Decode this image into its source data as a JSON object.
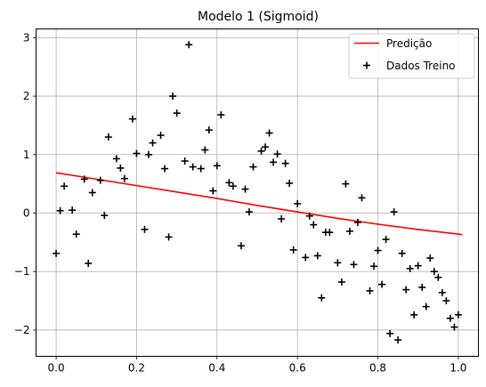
{
  "chart_data": {
    "type": "scatter",
    "title": "Modelo 1 (Sigmoid)",
    "xlabel": "",
    "ylabel": "",
    "xlim": [
      -0.05,
      1.05
    ],
    "ylim": [
      -2.45,
      3.15
    ],
    "xticks": [
      0.0,
      0.2,
      0.4,
      0.6,
      0.8,
      1.0
    ],
    "xtick_labels": [
      "0.0",
      "0.2",
      "0.4",
      "0.6",
      "0.8",
      "1.0"
    ],
    "yticks": [
      -2,
      -1,
      0,
      1,
      2,
      3
    ],
    "ytick_labels": [
      "−2",
      "−1",
      "0",
      "1",
      "2",
      "3"
    ],
    "grid": true,
    "legend_position": "top-right",
    "series": [
      {
        "name": "Predição",
        "kind": "line",
        "color": "#ff0000",
        "x": [
          0.0,
          0.1,
          0.2,
          0.3,
          0.4,
          0.5,
          0.6,
          0.7,
          0.8,
          0.9,
          1.0,
          1.01
        ],
        "y": [
          0.69,
          0.58,
          0.47,
          0.36,
          0.25,
          0.13,
          0.02,
          -0.09,
          -0.19,
          -0.28,
          -0.36,
          -0.37
        ]
      },
      {
        "name": "Dados Treino",
        "kind": "scatter",
        "color": "#000000",
        "marker": "plus",
        "x": [
          0.0,
          0.01,
          0.02,
          0.04,
          0.05,
          0.07,
          0.08,
          0.09,
          0.11,
          0.12,
          0.13,
          0.15,
          0.16,
          0.17,
          0.19,
          0.2,
          0.22,
          0.23,
          0.24,
          0.26,
          0.27,
          0.28,
          0.29,
          0.3,
          0.32,
          0.33,
          0.34,
          0.36,
          0.37,
          0.38,
          0.39,
          0.4,
          0.41,
          0.43,
          0.44,
          0.46,
          0.47,
          0.48,
          0.49,
          0.51,
          0.52,
          0.53,
          0.54,
          0.55,
          0.56,
          0.57,
          0.58,
          0.59,
          0.6,
          0.62,
          0.63,
          0.64,
          0.65,
          0.66,
          0.67,
          0.68,
          0.7,
          0.71,
          0.72,
          0.73,
          0.74,
          0.75,
          0.76,
          0.78,
          0.79,
          0.8,
          0.81,
          0.82,
          0.83,
          0.84,
          0.85,
          0.86,
          0.87,
          0.88,
          0.89,
          0.9,
          0.91,
          0.92,
          0.93,
          0.94,
          0.95,
          0.96,
          0.97,
          0.98,
          0.99,
          1.0
        ],
        "y": [
          -0.69,
          0.04,
          0.46,
          0.05,
          -0.36,
          0.58,
          -0.86,
          0.35,
          0.56,
          -0.04,
          1.3,
          0.93,
          0.77,
          0.59,
          1.61,
          1.02,
          -0.28,
          1.0,
          1.2,
          1.33,
          0.76,
          -0.41,
          2.0,
          1.71,
          0.89,
          2.88,
          0.79,
          0.76,
          1.08,
          1.42,
          0.38,
          0.81,
          1.68,
          0.52,
          0.46,
          -0.56,
          0.41,
          0.02,
          0.79,
          1.06,
          1.13,
          1.37,
          0.87,
          1.01,
          -0.1,
          0.85,
          0.51,
          -0.63,
          0.16,
          -0.76,
          -0.05,
          -0.2,
          -0.73,
          -1.45,
          -0.33,
          -0.33,
          -0.85,
          -1.18,
          0.5,
          -0.31,
          -0.88,
          -0.16,
          0.26,
          -1.33,
          -0.91,
          -0.64,
          -1.22,
          -0.45,
          -2.06,
          0.02,
          -2.17,
          -0.69,
          -1.31,
          -0.95,
          -1.74,
          -0.9,
          -1.27,
          -1.6,
          -0.77,
          -1.0,
          -1.1,
          -1.36,
          -1.5,
          -1.8,
          -1.95,
          -1.74
        ]
      }
    ]
  }
}
